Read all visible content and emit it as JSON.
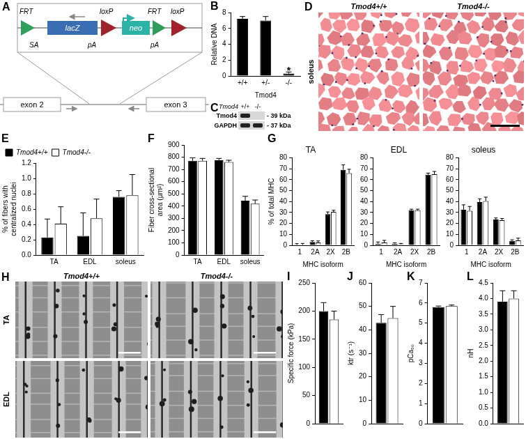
{
  "chart_data": [
    {
      "panel": "B",
      "type": "bar",
      "categories": [
        "+/+",
        "+/-",
        "-/-"
      ],
      "values": [
        7.2,
        7.0,
        0.3
      ],
      "errors": [
        0.3,
        0.5,
        0.2
      ],
      "color": "#000000",
      "ylabel": "Relative DNA",
      "xlabel": "Tmod4",
      "ylim": [
        0,
        8
      ],
      "yticks": [
        0,
        2,
        4,
        6,
        8
      ],
      "grid": false,
      "annotations": [
        {
          "text": "*",
          "x": "-/-",
          "y": 0.9
        }
      ]
    },
    {
      "panel": "E",
      "type": "bar",
      "categories": [
        "TA",
        "EDL",
        "soleus"
      ],
      "series": [
        {
          "name": "Tmod4+/+",
          "color": "#000000",
          "values": [
            0.23,
            0.25,
            0.76
          ],
          "errors": [
            0.24,
            0.3,
            0.08
          ]
        },
        {
          "name": "Tmod4-/-",
          "color": "#ffffff",
          "values": [
            0.41,
            0.48,
            0.78
          ],
          "errors": [
            0.22,
            0.25,
            0.27
          ]
        }
      ],
      "ylabel": "% of fibers with centralized nuclei",
      "ylim": [
        0,
        1.2
      ],
      "yticks": [
        {
          "value": 0,
          "label": "0.0"
        },
        0.2,
        0.4,
        0.6,
        0.8,
        {
          "value": 1,
          "label": "1.0"
        },
        1.2
      ],
      "grid": false,
      "legend": "top-left"
    },
    {
      "panel": "F",
      "type": "bar",
      "categories": [
        "TA",
        "EDL",
        "soleus"
      ],
      "series": [
        {
          "color": "#000000",
          "values": [
            770,
            775,
            445
          ],
          "errors": [
            25,
            15,
            35
          ]
        },
        {
          "color": "#ffffff",
          "values": [
            770,
            760,
            420
          ],
          "errors": [
            20,
            15,
            30
          ]
        }
      ],
      "ylabel": "Fiber cross-sectional area (µm²)",
      "ylim": [
        0,
        900
      ],
      "yticks": [
        0,
        100,
        200,
        300,
        400,
        500,
        600,
        700,
        800,
        900
      ],
      "grid": false
    },
    {
      "panel": "G",
      "type": "bar",
      "title": "TA",
      "categories": [
        "1",
        "2A",
        "2X",
        "2B"
      ],
      "series": [
        {
          "color": "#000000",
          "values": [
            0.5,
            3,
            28.5,
            69
          ],
          "errors": [
            1.0,
            1.2,
            2,
            4.5
          ]
        },
        {
          "color": "#ffffff",
          "values": [
            0.5,
            2.5,
            30.5,
            66
          ],
          "errors": [
            1.2,
            1.5,
            1.5,
            3.5
          ]
        }
      ],
      "xlabel": "MHC isoform",
      "ylabel": "% of total MHC",
      "ylim": [
        0,
        80
      ],
      "yticks": [
        0,
        10,
        20,
        30,
        40,
        50,
        60,
        70,
        80
      ],
      "grid": false
    },
    {
      "type": "bar",
      "title": "EDL",
      "categories": [
        "1",
        "2A",
        "2X",
        "2B"
      ],
      "series": [
        {
          "color": "#000000",
          "values": [
            1.5,
            1.5,
            32,
            64.5
          ],
          "errors": [
            1.5,
            0.8,
            1,
            1.5
          ]
        },
        {
          "color": "#ffffff",
          "values": [
            2.5,
            1,
            32,
            65
          ],
          "errors": [
            2,
            0.7,
            1,
            2.5
          ]
        }
      ],
      "xlabel": "MHC isoform",
      "ylim": [
        0,
        80
      ],
      "yticks": [
        0,
        10,
        20,
        30,
        40,
        50,
        60,
        70,
        80
      ],
      "grid": false
    },
    {
      "type": "bar",
      "title": "soleus",
      "categories": [
        "1",
        "2A",
        "2X",
        "2B"
      ],
      "series": [
        {
          "color": "#000000",
          "values": [
            32.5,
            39.5,
            23.5,
            4
          ],
          "errors": [
            4.5,
            3,
            1.5,
            1
          ]
        },
        {
          "color": "#ffffff",
          "values": [
            31.5,
            40.5,
            23,
            4.5
          ],
          "errors": [
            4,
            3.5,
            1.5,
            2
          ]
        }
      ],
      "xlabel": "MHC isoform",
      "ylim": [
        0,
        80
      ],
      "yticks": [
        0,
        10,
        20,
        30,
        40,
        50,
        60,
        70,
        80
      ],
      "grid": false
    },
    {
      "panel": "I",
      "type": "bar",
      "categories": [
        null
      ],
      "series": [
        {
          "color": "#000000",
          "values": [
            200
          ],
          "errors": [
            15
          ]
        },
        {
          "color": "#ffffff",
          "values": [
            185
          ],
          "errors": [
            15
          ]
        }
      ],
      "ylabel": "Specific force (kPa)",
      "ylim": [
        0,
        250
      ],
      "yticks": [
        0,
        50,
        100,
        150,
        200,
        250
      ],
      "grid": false
    },
    {
      "panel": "J",
      "type": "bar",
      "categories": [
        null
      ],
      "series": [
        {
          "color": "#000000",
          "values": [
            43
          ],
          "errors": [
            3.5
          ]
        },
        {
          "color": "#ffffff",
          "values": [
            45
          ],
          "errors": [
            5
          ]
        }
      ],
      "ylabel": "ktr (s⁻¹)",
      "ylim": [
        0,
        60
      ],
      "yticks": [
        0,
        10,
        20,
        30,
        40,
        50,
        60
      ],
      "grid": false
    },
    {
      "panel": "K",
      "type": "bar",
      "categories": [
        null
      ],
      "series": [
        {
          "color": "#000000",
          "values": [
            5.8
          ],
          "errors": [
            0.05
          ]
        },
        {
          "color": "#ffffff",
          "values": [
            5.85
          ],
          "errors": [
            0.05
          ]
        }
      ],
      "ylabel": "pCa₅₀",
      "ylim": [
        0,
        7
      ],
      "yticks": [
        0,
        1,
        2,
        3,
        4,
        5,
        6,
        7
      ],
      "grid": false
    },
    {
      "panel": "L",
      "type": "bar",
      "categories": [
        null
      ],
      "series": [
        {
          "color": "#000000",
          "values": [
            3.9
          ],
          "errors": [
            0.35
          ]
        },
        {
          "color": "#ffffff",
          "values": [
            4.0
          ],
          "errors": [
            0.25
          ]
        }
      ],
      "ylabel": "nH",
      "ylim": [
        0,
        4.5
      ],
      "yticks": [
        {
          "value": 0,
          "label": "0.0"
        },
        0.5,
        {
          "value": 1,
          "label": "1.0"
        },
        1.5,
        {
          "value": 2,
          "label": "2.0"
        },
        2.5,
        {
          "value": 3,
          "label": "3.0"
        },
        3.5,
        {
          "value": 4,
          "label": "4.0"
        },
        4.5
      ],
      "grid": false
    }
  ],
  "diagram": {
    "panel": "A",
    "labels": {
      "frt_left": "FRT",
      "sa": "SA",
      "lacz": "lacZ",
      "pa_left": "pA",
      "loxp_left": "loxP",
      "neo": "neo",
      "pa_right": "pA",
      "frt_right": "FRT",
      "loxp_right": "loxP"
    },
    "exons": [
      "exon 2",
      "exon 3"
    ]
  },
  "blot": {
    "panel": "C",
    "gene": "Tmod4",
    "lanes": [
      "+/+",
      "-/-"
    ],
    "rows": [
      {
        "name": "Tmod4",
        "size": "- 39 kDa"
      },
      {
        "name": "GAPDH",
        "size": "- 37 kDa"
      }
    ]
  },
  "histology": {
    "panel": "D",
    "tissue": "soleus",
    "columns": [
      "Tmod4+/+",
      "Tmod4-/-"
    ]
  },
  "micrographs": {
    "panel": "H",
    "columns": [
      "Tmod4+/+",
      "Tmod4-/-"
    ],
    "rows": [
      "TA",
      "EDL"
    ]
  }
}
